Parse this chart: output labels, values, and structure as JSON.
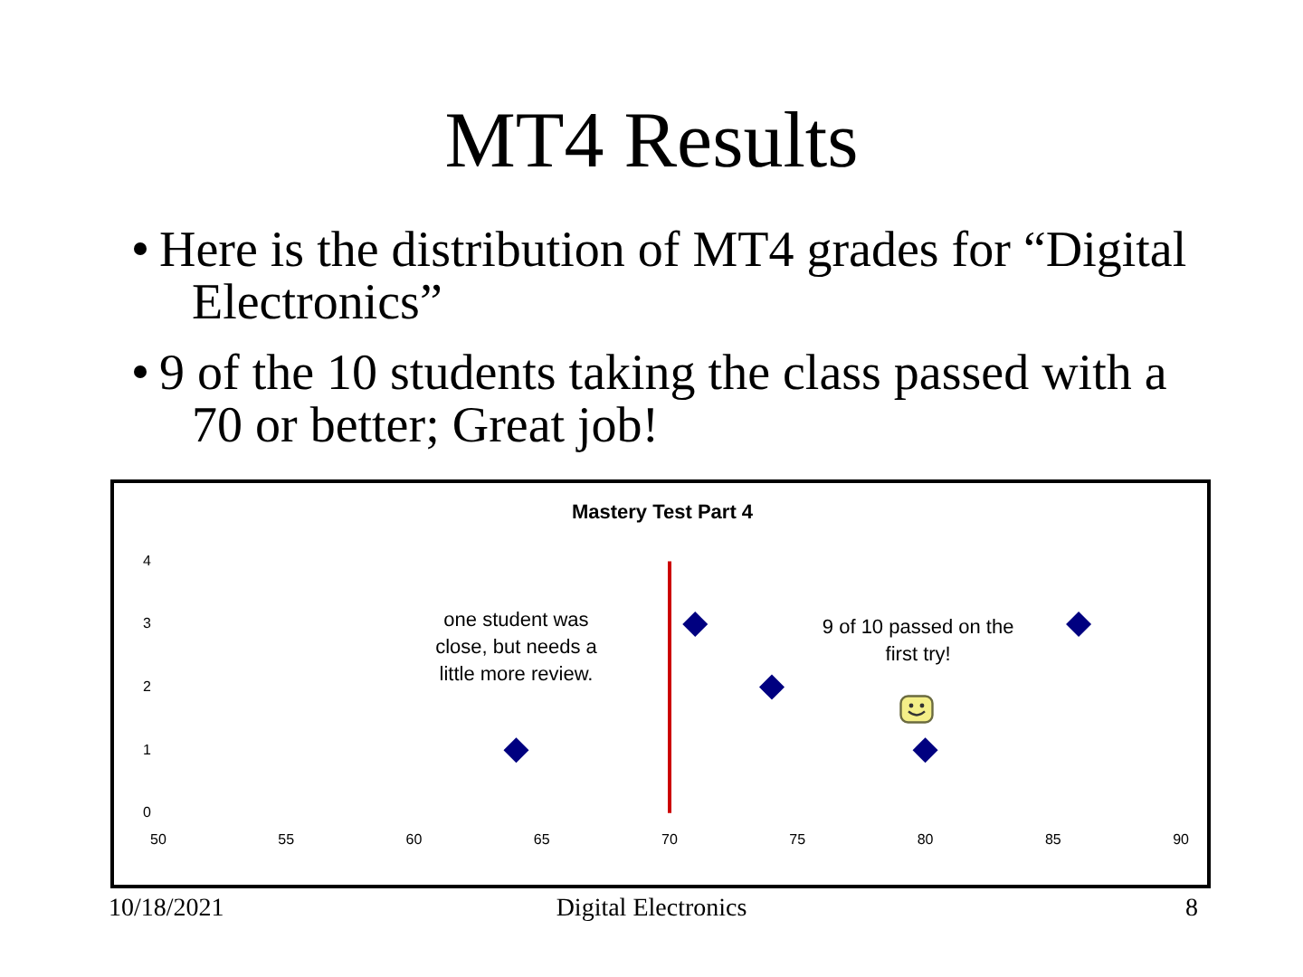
{
  "chart_data": {
    "type": "scatter",
    "title": "MT4 Results",
    "subtitle": "Mastery Test Part 4",
    "x": [
      64,
      71,
      74,
      80,
      86
    ],
    "values": [
      1,
      3,
      2,
      1,
      3
    ],
    "color": "#000080",
    "marker": "diamond",
    "xlim": [
      50,
      90
    ],
    "xticks": [
      50,
      55,
      60,
      65,
      70,
      75,
      80,
      85,
      90
    ],
    "ylim": [
      0,
      4
    ],
    "yticks": [
      0,
      1,
      2,
      3,
      4
    ],
    "grid": false,
    "legend": false,
    "ref_lines": [
      {
        "axis": "x",
        "value": 70,
        "color": "#cc0000"
      }
    ],
    "annotations": [
      "Here is the distribution of MT4 grades for “Digital Electronics”",
      "9 of the 10 students taking the class passed with a 70 or better; Great job!",
      "one student was close, but needs a little more review.",
      "9 of 10 passed on the first try!",
      "10/18/2021",
      "Digital Electronics",
      "8"
    ]
  }
}
